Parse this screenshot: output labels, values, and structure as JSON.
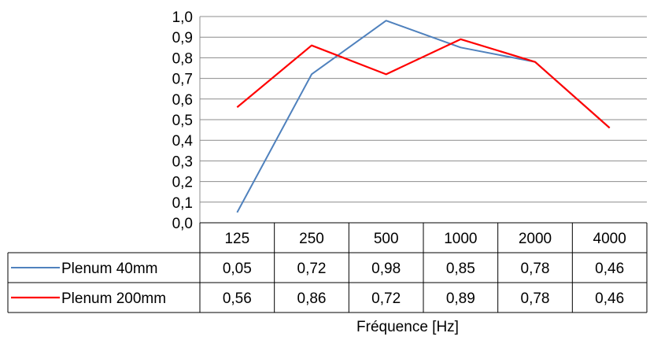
{
  "chart_data": {
    "type": "line",
    "categories": [
      "125",
      "250",
      "500",
      "1000",
      "2000",
      "4000"
    ],
    "series": [
      {
        "name": "Plenum 40mm",
        "color": "#4f81bd",
        "values": [
          0.05,
          0.72,
          0.98,
          0.85,
          0.78,
          0.46
        ],
        "labels": [
          "0,05",
          "0,72",
          "0,98",
          "0,85",
          "0,78",
          "0,46"
        ]
      },
      {
        "name": "Plenum 200mm",
        "color": "#ff0000",
        "values": [
          0.56,
          0.86,
          0.72,
          0.89,
          0.78,
          0.46
        ],
        "labels": [
          "0,56",
          "0,86",
          "0,72",
          "0,89",
          "0,78",
          "0,46"
        ]
      }
    ],
    "ylim": [
      0,
      1.0
    ],
    "yticks": [
      0,
      0.1,
      0.2,
      0.3,
      0.4,
      0.5,
      0.6,
      0.7,
      0.8,
      0.9,
      1.0
    ],
    "ytick_labels": [
      "0,0",
      "0,1",
      "0,2",
      "0,3",
      "0,4",
      "0,5",
      "0,6",
      "0,7",
      "0,8",
      "0,9",
      "1,0"
    ],
    "xlabel": "Fréquence [Hz]",
    "ylabel": "",
    "grid": true,
    "legend": "data table"
  }
}
